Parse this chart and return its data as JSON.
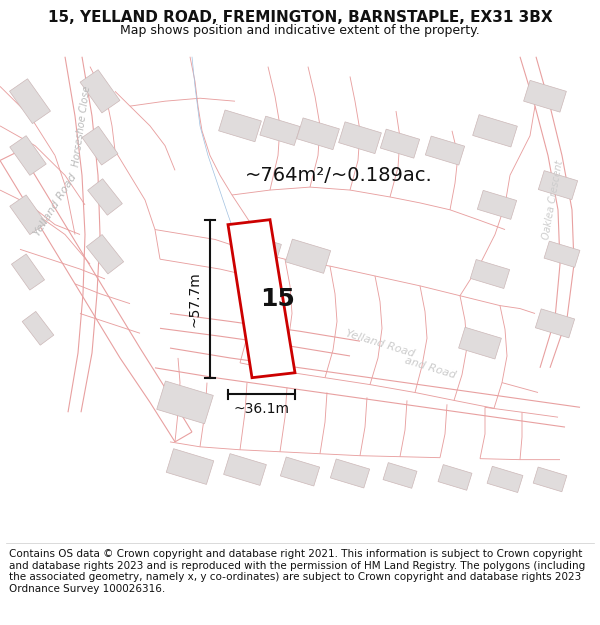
{
  "title_line1": "15, YELLAND ROAD, FREMINGTON, BARNSTAPLE, EX31 3BX",
  "title_line2": "Map shows position and indicative extent of the property.",
  "footer_text": "Contains OS data © Crown copyright and database right 2021. This information is subject to Crown copyright and database rights 2023 and is reproduced with the permission of HM Land Registry. The polygons (including the associated geometry, namely x, y co-ordinates) are subject to Crown copyright and database rights 2023 Ordnance Survey 100026316.",
  "area_label": "~764m²/~0.189ac.",
  "number_label": "15",
  "dim_height": "~57.7m",
  "dim_width": "~36.1m",
  "map_bg": "#ffffff",
  "boundary_color": "#e8a0a0",
  "boundary_lw": 0.8,
  "road_label_color": "#bbbbbb",
  "building_fill": "#e0dcdc",
  "building_edge": "#ccb8b8",
  "plot_outline_color": "#cc0000",
  "dim_line_color": "#111111",
  "text_color": "#111111",
  "title_fontsize": 11,
  "subtitle_fontsize": 9,
  "area_fontsize": 14,
  "number_fontsize": 18,
  "dim_fontsize": 10,
  "footer_fontsize": 7.5
}
